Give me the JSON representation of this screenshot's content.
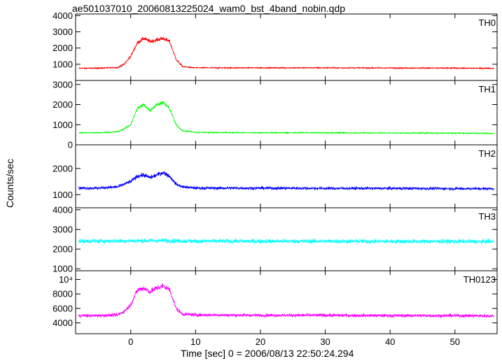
{
  "chart_data": {
    "type": "line",
    "title": "ae501037010_20060813225024_wam0_bst_4band_nobin.qdp",
    "xlabel": "Time [sec] 0 = 2006/08/13 22:50:24.294",
    "ylabel": "Counts/sec",
    "xlim": [
      -8.5,
      56.5
    ],
    "x_ticks": [
      0,
      10,
      20,
      30,
      40,
      50
    ],
    "grid": false,
    "panels": [
      {
        "name": "TH0",
        "color": "#ff0000",
        "ylim": [
          0,
          4100
        ],
        "yticks": [
          1000,
          2000,
          3000,
          4000
        ],
        "ytick_labels": [
          "1000",
          "2000",
          "3000",
          "4000"
        ],
        "points": [
          [
            -8,
            750
          ],
          [
            -5,
            760
          ],
          [
            -2,
            800
          ],
          [
            -1,
            1000
          ],
          [
            0,
            1500
          ],
          [
            1,
            2300
          ],
          [
            2,
            2600
          ],
          [
            3,
            2400
          ],
          [
            4,
            2500
          ],
          [
            5,
            2600
          ],
          [
            6,
            2400
          ],
          [
            7,
            1300
          ],
          [
            8,
            850
          ],
          [
            10,
            780
          ],
          [
            20,
            780
          ],
          [
            30,
            780
          ],
          [
            40,
            770
          ],
          [
            50,
            760
          ],
          [
            56,
            750
          ]
        ]
      },
      {
        "name": "TH1",
        "color": "#00ff00",
        "ylim": [
          0,
          3200
        ],
        "yticks": [
          0,
          1000,
          2000,
          3000
        ],
        "ytick_labels": [
          "0",
          "1000",
          "2000",
          "3000"
        ],
        "points": [
          [
            -8,
            600
          ],
          [
            -5,
            600
          ],
          [
            -2,
            650
          ],
          [
            -1,
            800
          ],
          [
            0,
            1000
          ],
          [
            1,
            1800
          ],
          [
            2,
            2000
          ],
          [
            3,
            1700
          ],
          [
            4,
            2000
          ],
          [
            5,
            2100
          ],
          [
            6,
            1800
          ],
          [
            7,
            1000
          ],
          [
            8,
            700
          ],
          [
            10,
            620
          ],
          [
            20,
            600
          ],
          [
            30,
            600
          ],
          [
            40,
            590
          ],
          [
            50,
            580
          ],
          [
            56,
            570
          ]
        ]
      },
      {
        "name": "TH2",
        "color": "#0000ff",
        "ylim": [
          500,
          2900
        ],
        "yticks": [
          1000,
          2000
        ],
        "ytick_labels": [
          "1000",
          "2000"
        ],
        "points": [
          [
            -8,
            1250
          ],
          [
            -5,
            1250
          ],
          [
            -2,
            1300
          ],
          [
            -1,
            1400
          ],
          [
            0,
            1500
          ],
          [
            1,
            1700
          ],
          [
            2,
            1750
          ],
          [
            3,
            1650
          ],
          [
            4,
            1750
          ],
          [
            5,
            1850
          ],
          [
            6,
            1700
          ],
          [
            7,
            1400
          ],
          [
            8,
            1300
          ],
          [
            10,
            1250
          ],
          [
            20,
            1250
          ],
          [
            30,
            1240
          ],
          [
            40,
            1240
          ],
          [
            50,
            1230
          ],
          [
            56,
            1230
          ]
        ]
      },
      {
        "name": "TH3",
        "color": "#00ffff",
        "ylim": [
          900,
          4100
        ],
        "yticks": [
          1000,
          2000,
          3000,
          4000
        ],
        "ytick_labels": [
          "1000",
          "2000",
          "3000",
          "4000"
        ],
        "points": [
          [
            -8,
            2400
          ],
          [
            0,
            2420
          ],
          [
            5,
            2430
          ],
          [
            10,
            2400
          ],
          [
            20,
            2400
          ],
          [
            30,
            2400
          ],
          [
            40,
            2390
          ],
          [
            50,
            2390
          ],
          [
            56,
            2380
          ]
        ]
      },
      {
        "name": "TH0123",
        "color": "#ff00ff",
        "ylim": [
          2500,
          11200
        ],
        "yticks": [
          4000,
          6000,
          8000,
          10000
        ],
        "ytick_labels": [
          "4000",
          "6000",
          "8000",
          "10⁴"
        ],
        "points": [
          [
            -8,
            5000
          ],
          [
            -5,
            5000
          ],
          [
            -2,
            5100
          ],
          [
            -1,
            5600
          ],
          [
            0,
            6500
          ],
          [
            1,
            8500
          ],
          [
            2,
            8800
          ],
          [
            3,
            8300
          ],
          [
            4,
            8800
          ],
          [
            5,
            9100
          ],
          [
            6,
            8600
          ],
          [
            7,
            6000
          ],
          [
            8,
            5200
          ],
          [
            10,
            5100
          ],
          [
            20,
            5050
          ],
          [
            30,
            5050
          ],
          [
            40,
            5000
          ],
          [
            50,
            5000
          ],
          [
            56,
            4950
          ]
        ]
      }
    ]
  }
}
